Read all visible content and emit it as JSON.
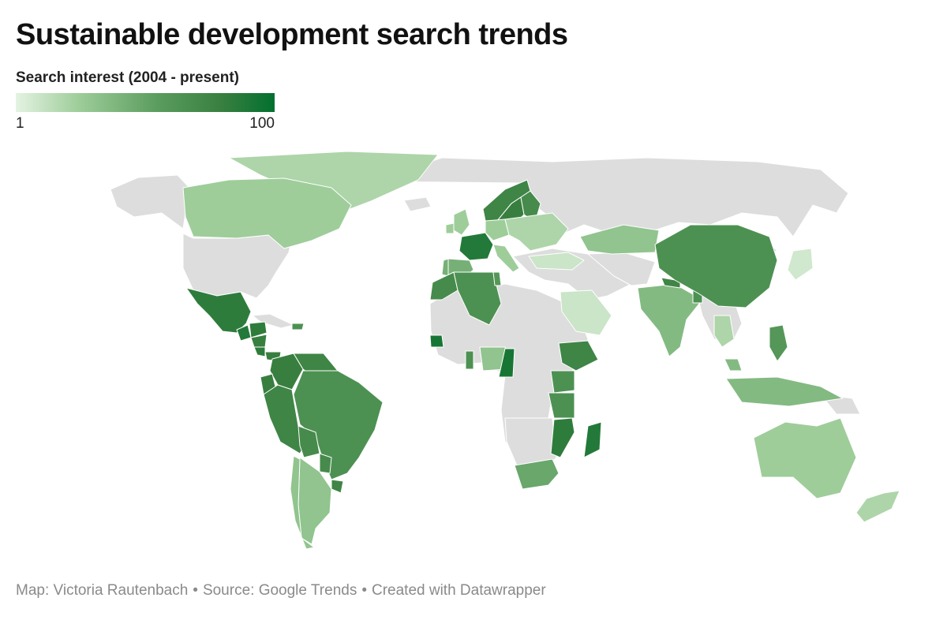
{
  "title": "Sustainable development search trends",
  "legend": {
    "title": "Search interest (2004 - present)",
    "min_label": "1",
    "max_label": "100",
    "colors": [
      "#e4f3e2",
      "#9ccc98",
      "#5a9c5e",
      "#387f3f",
      "#02702f"
    ]
  },
  "no_data_color": "#dddddd",
  "border_color": "#ffffff",
  "footer": {
    "map_credit": "Map: Victoria Rautenbach",
    "source": "Source: Google Trends",
    "created_with": "Created with Datawrapper",
    "separator": "•"
  },
  "map_data": {
    "type": "choropleth",
    "scale": [
      1,
      100
    ],
    "values": {
      "Canada": 25,
      "United States": null,
      "Greenland": 20,
      "Mexico": 80,
      "Guatemala": 85,
      "Honduras": 80,
      "Nicaragua": 75,
      "Costa Rica": 80,
      "Panama": 75,
      "Dominican Republic": 60,
      "Colombia": 75,
      "Venezuela": 70,
      "Ecuador": 75,
      "Peru": 70,
      "Bolivia": 65,
      "Brazil": 60,
      "Paraguay": 65,
      "Uruguay": 70,
      "Argentina": 30,
      "Chile": 30,
      "France": 85,
      "Spain": 40,
      "Portugal": 40,
      "United Kingdom": 25,
      "Ireland": 25,
      "Germany": 25,
      "Italy": 25,
      "Norway": 70,
      "Sweden": 75,
      "Finland": 65,
      "Eastern Europe": 20,
      "Turkey": 10,
      "Kazakhstan": 30,
      "Morocco": 65,
      "Algeria": 60,
      "Tunisia": 55,
      "Senegal": 90,
      "Ghana": 60,
      "Nigeria": 30,
      "Cameroon": 90,
      "Ethiopia": 70,
      "Kenya": 60,
      "Tanzania": 60,
      "Mozambique": 80,
      "Madagascar": 85,
      "South Africa": 45,
      "Saudi Arabia": 10,
      "India": 35,
      "Nepal": 70,
      "Bangladesh": 60,
      "China": 60,
      "Japan": 8,
      "Philippines": 55,
      "Thailand": 20,
      "Indonesia": 35,
      "Malaysia": 35,
      "Australia": 25,
      "New Zealand": 20
    }
  }
}
